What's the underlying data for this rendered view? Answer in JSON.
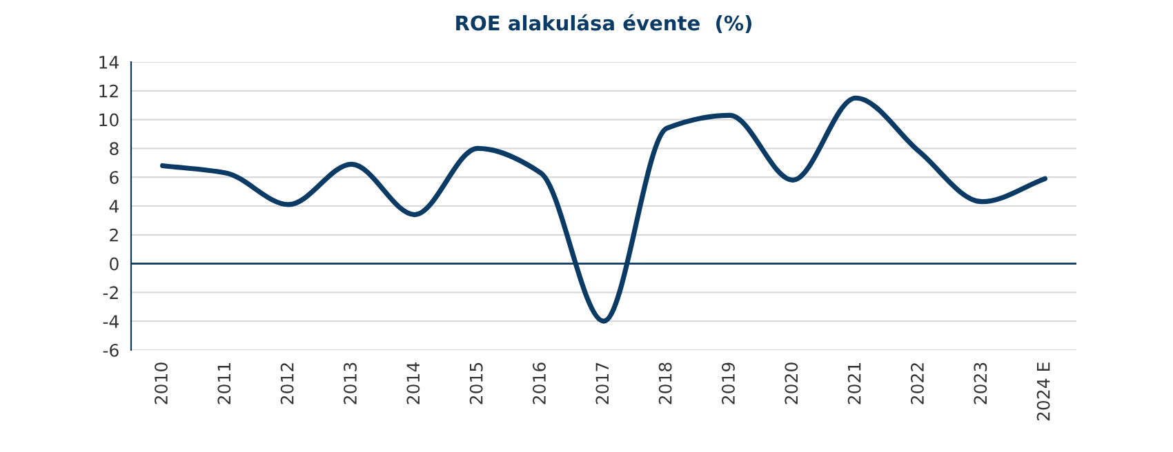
{
  "chart_data": {
    "type": "line",
    "title": "ROE alakulása évente  (%)",
    "categories": [
      "2010",
      "2011",
      "2012",
      "2013",
      "2014",
      "2015",
      "2016",
      "2017",
      "2018",
      "2019",
      "2020",
      "2021",
      "2022",
      "2023",
      "2024 E"
    ],
    "series": [
      {
        "color": "#0b3a64",
        "values": [
          6.8,
          6.3,
          4.1,
          6.9,
          3.4,
          8.0,
          6.3,
          -4.0,
          9.4,
          10.3,
          5.8,
          11.5,
          7.8,
          4.3,
          5.9
        ]
      }
    ],
    "ylim": [
      -6,
      14
    ],
    "yticks": [
      -6,
      -4,
      -2,
      0,
      2,
      4,
      6,
      8,
      10,
      12,
      14
    ],
    "grid": "y",
    "marker": "none",
    "line_style": "solid",
    "ref_lines": [
      {
        "axis": "y",
        "value": 0,
        "color": "#0d3a5c"
      }
    ]
  }
}
